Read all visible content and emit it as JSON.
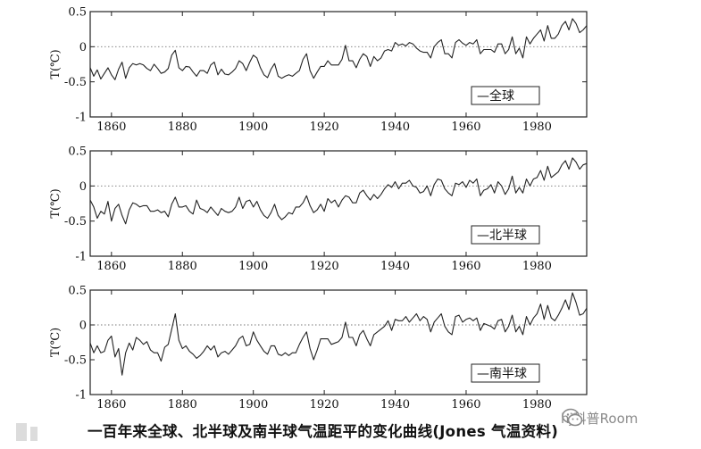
{
  "caption": "一百年来全球、北半球及南半球气温距平的变化曲线(Jones 气温资料)",
  "watermark": {
    "text": "hj科普Room",
    "icon": "wechat-icon"
  },
  "colors": {
    "line": "#222222",
    "zero_line": "#777777",
    "background": "#ffffff"
  },
  "chart_data": [
    {
      "type": "line",
      "ylabel": "T(℃)",
      "xticks": [
        1860,
        1880,
        1900,
        1920,
        1940,
        1960,
        1980
      ],
      "yticks": [
        0.5,
        0,
        -0.5,
        -1
      ],
      "ytick_labels": [
        "0.5",
        "0",
        "-0.5",
        "-1"
      ],
      "xlim": [
        1854,
        1994
      ],
      "ylim": [
        -1,
        0.5
      ],
      "zero_reference_line": "dotted",
      "legend": "—全球",
      "legend_position": "bottom-right",
      "series": [
        {
          "x": [
            1854,
            1855,
            1856,
            1857,
            1858,
            1859,
            1860,
            1861,
            1862,
            1863,
            1864,
            1865,
            1866,
            1867,
            1868,
            1869,
            1870,
            1871,
            1872,
            1873,
            1874,
            1875,
            1876,
            1877,
            1878,
            1879,
            1880,
            1881,
            1882,
            1883,
            1884,
            1885,
            1886,
            1887,
            1888,
            1889,
            1890,
            1891,
            1892,
            1893,
            1894,
            1895,
            1896,
            1897,
            1898,
            1899,
            1900,
            1901,
            1902,
            1903,
            1904,
            1905,
            1906,
            1907,
            1908,
            1909,
            1910,
            1911,
            1912,
            1913,
            1914,
            1915,
            1916,
            1917,
            1918,
            1919,
            1920,
            1921,
            1922,
            1923,
            1924,
            1925,
            1926,
            1927,
            1928,
            1929,
            1930,
            1931,
            1932,
            1933,
            1934,
            1935,
            1936,
            1937,
            1938,
            1939,
            1940,
            1941,
            1942,
            1943,
            1944,
            1945,
            1946,
            1947,
            1948,
            1949,
            1950,
            1951,
            1952,
            1953,
            1954,
            1955,
            1956,
            1957,
            1958,
            1959,
            1960,
            1961,
            1962,
            1963,
            1964,
            1965,
            1966,
            1967,
            1968,
            1969,
            1970,
            1971,
            1972,
            1973,
            1974,
            1975,
            1976,
            1977,
            1978,
            1979,
            1980,
            1981,
            1982,
            1983,
            1984,
            1985,
            1986,
            1987,
            1988,
            1989,
            1990,
            1991,
            1992,
            1993,
            1994
          ],
          "y": [
            -0.3,
            -0.42,
            -0.33,
            -0.46,
            -0.38,
            -0.3,
            -0.4,
            -0.47,
            -0.32,
            -0.22,
            -0.45,
            -0.3,
            -0.24,
            -0.26,
            -0.24,
            -0.26,
            -0.31,
            -0.34,
            -0.25,
            -0.31,
            -0.38,
            -0.36,
            -0.31,
            -0.12,
            -0.05,
            -0.3,
            -0.34,
            -0.28,
            -0.29,
            -0.36,
            -0.42,
            -0.34,
            -0.34,
            -0.38,
            -0.26,
            -0.22,
            -0.4,
            -0.32,
            -0.39,
            -0.4,
            -0.36,
            -0.31,
            -0.2,
            -0.24,
            -0.34,
            -0.22,
            -0.12,
            -0.16,
            -0.3,
            -0.4,
            -0.44,
            -0.32,
            -0.24,
            -0.42,
            -0.45,
            -0.42,
            -0.4,
            -0.42,
            -0.38,
            -0.34,
            -0.18,
            -0.1,
            -0.34,
            -0.45,
            -0.36,
            -0.28,
            -0.28,
            -0.2,
            -0.26,
            -0.26,
            -0.26,
            -0.18,
            0.02,
            -0.2,
            -0.2,
            -0.3,
            -0.18,
            -0.1,
            -0.14,
            -0.28,
            -0.14,
            -0.2,
            -0.16,
            -0.06,
            -0.04,
            -0.06,
            0.06,
            0.02,
            0.04,
            0.01,
            0.06,
            0.04,
            -0.02,
            -0.06,
            -0.08,
            -0.08,
            -0.16,
            0.0,
            0.06,
            0.1,
            -0.1,
            -0.1,
            -0.16,
            0.06,
            0.1,
            0.05,
            0.02,
            0.06,
            0.04,
            0.1,
            -0.1,
            -0.04,
            -0.04,
            -0.04,
            -0.08,
            0.04,
            0.04,
            -0.1,
            -0.04,
            0.14,
            -0.1,
            -0.02,
            -0.16,
            0.14,
            0.04,
            0.12,
            0.18,
            0.24,
            0.08,
            0.3,
            0.12,
            0.12,
            0.18,
            0.3,
            0.36,
            0.24,
            0.4,
            0.33,
            0.2,
            0.24,
            0.3
          ]
        }
      ]
    },
    {
      "type": "line",
      "ylabel": "T(℃)",
      "xticks": [
        1860,
        1880,
        1900,
        1920,
        1940,
        1960,
        1980
      ],
      "yticks": [
        0.5,
        0,
        -0.5,
        -1
      ],
      "ytick_labels": [
        "0.5",
        "0",
        "-0.5",
        "-1"
      ],
      "xlim": [
        1854,
        1994
      ],
      "ylim": [
        -1,
        0.5
      ],
      "zero_reference_line": "dotted",
      "legend": "—北半球",
      "legend_position": "bottom-right",
      "series": [
        {
          "x": [
            1854,
            1855,
            1856,
            1857,
            1858,
            1859,
            1860,
            1861,
            1862,
            1863,
            1864,
            1865,
            1866,
            1867,
            1868,
            1869,
            1870,
            1871,
            1872,
            1873,
            1874,
            1875,
            1876,
            1877,
            1878,
            1879,
            1880,
            1881,
            1882,
            1883,
            1884,
            1885,
            1886,
            1887,
            1888,
            1889,
            1890,
            1891,
            1892,
            1893,
            1894,
            1895,
            1896,
            1897,
            1898,
            1899,
            1900,
            1901,
            1902,
            1903,
            1904,
            1905,
            1906,
            1907,
            1908,
            1909,
            1910,
            1911,
            1912,
            1913,
            1914,
            1915,
            1916,
            1917,
            1918,
            1919,
            1920,
            1921,
            1922,
            1923,
            1924,
            1925,
            1926,
            1927,
            1928,
            1929,
            1930,
            1931,
            1932,
            1933,
            1934,
            1935,
            1936,
            1937,
            1938,
            1939,
            1940,
            1941,
            1942,
            1943,
            1944,
            1945,
            1946,
            1947,
            1948,
            1949,
            1950,
            1951,
            1952,
            1953,
            1954,
            1955,
            1956,
            1957,
            1958,
            1959,
            1960,
            1961,
            1962,
            1963,
            1964,
            1965,
            1966,
            1967,
            1968,
            1969,
            1970,
            1971,
            1972,
            1973,
            1974,
            1975,
            1976,
            1977,
            1978,
            1979,
            1980,
            1981,
            1982,
            1983,
            1984,
            1985,
            1986,
            1987,
            1988,
            1989,
            1990,
            1991,
            1992,
            1993,
            1994
          ],
          "y": [
            -0.2,
            -0.3,
            -0.46,
            -0.36,
            -0.4,
            -0.22,
            -0.5,
            -0.32,
            -0.26,
            -0.42,
            -0.54,
            -0.34,
            -0.24,
            -0.26,
            -0.3,
            -0.28,
            -0.28,
            -0.36,
            -0.36,
            -0.34,
            -0.38,
            -0.36,
            -0.44,
            -0.26,
            -0.16,
            -0.3,
            -0.3,
            -0.28,
            -0.36,
            -0.4,
            -0.2,
            -0.32,
            -0.34,
            -0.38,
            -0.3,
            -0.36,
            -0.42,
            -0.32,
            -0.36,
            -0.38,
            -0.36,
            -0.3,
            -0.16,
            -0.32,
            -0.22,
            -0.2,
            -0.3,
            -0.22,
            -0.34,
            -0.42,
            -0.46,
            -0.38,
            -0.26,
            -0.42,
            -0.48,
            -0.44,
            -0.38,
            -0.4,
            -0.3,
            -0.3,
            -0.24,
            -0.14,
            -0.28,
            -0.38,
            -0.34,
            -0.26,
            -0.36,
            -0.18,
            -0.24,
            -0.2,
            -0.3,
            -0.2,
            -0.14,
            -0.16,
            -0.24,
            -0.24,
            -0.1,
            -0.06,
            -0.14,
            -0.2,
            -0.12,
            -0.18,
            -0.12,
            -0.04,
            0.02,
            -0.02,
            0.06,
            -0.04,
            0.04,
            0.04,
            0.08,
            0.0,
            -0.02,
            -0.1,
            -0.08,
            0.0,
            -0.14,
            0.02,
            0.1,
            0.08,
            -0.04,
            -0.1,
            -0.14,
            0.04,
            0.02,
            0.06,
            -0.02,
            0.08,
            0.04,
            0.1,
            -0.14,
            -0.06,
            -0.04,
            0.02,
            -0.1,
            0.06,
            0.0,
            -0.12,
            -0.04,
            0.14,
            -0.1,
            -0.02,
            -0.1,
            0.1,
            0.0,
            0.1,
            0.12,
            0.22,
            0.08,
            0.28,
            0.12,
            0.16,
            0.2,
            0.3,
            0.36,
            0.24,
            0.4,
            0.34,
            0.24,
            0.3,
            0.32
          ]
        }
      ]
    },
    {
      "type": "line",
      "ylabel": "T(℃)",
      "xticks": [
        1860,
        1880,
        1900,
        1920,
        1940,
        1960,
        1980
      ],
      "yticks": [
        0.5,
        0,
        -0.5,
        -1
      ],
      "ytick_labels": [
        "0.5",
        "0",
        "-0.5",
        "-1"
      ],
      "xlim": [
        1854,
        1994
      ],
      "ylim": [
        -1,
        0.5
      ],
      "zero_reference_line": "dotted",
      "legend": "—南半球",
      "legend_position": "bottom-right",
      "series": [
        {
          "x": [
            1854,
            1855,
            1856,
            1857,
            1858,
            1859,
            1860,
            1861,
            1862,
            1863,
            1864,
            1865,
            1866,
            1867,
            1868,
            1869,
            1870,
            1871,
            1872,
            1873,
            1874,
            1875,
            1876,
            1877,
            1878,
            1879,
            1880,
            1881,
            1882,
            1883,
            1884,
            1885,
            1886,
            1887,
            1888,
            1889,
            1890,
            1891,
            1892,
            1893,
            1894,
            1895,
            1896,
            1897,
            1898,
            1899,
            1900,
            1901,
            1902,
            1903,
            1904,
            1905,
            1906,
            1907,
            1908,
            1909,
            1910,
            1911,
            1912,
            1913,
            1914,
            1915,
            1916,
            1917,
            1918,
            1919,
            1920,
            1921,
            1922,
            1923,
            1924,
            1925,
            1926,
            1927,
            1928,
            1929,
            1930,
            1931,
            1932,
            1933,
            1934,
            1935,
            1936,
            1937,
            1938,
            1939,
            1940,
            1941,
            1942,
            1943,
            1944,
            1945,
            1946,
            1947,
            1948,
            1949,
            1950,
            1951,
            1952,
            1953,
            1954,
            1955,
            1956,
            1957,
            1958,
            1959,
            1960,
            1961,
            1962,
            1963,
            1964,
            1965,
            1966,
            1967,
            1968,
            1969,
            1970,
            1971,
            1972,
            1973,
            1974,
            1975,
            1976,
            1977,
            1978,
            1979,
            1980,
            1981,
            1982,
            1983,
            1984,
            1985,
            1986,
            1987,
            1988,
            1989,
            1990,
            1991,
            1992,
            1993,
            1994
          ],
          "y": [
            -0.26,
            -0.4,
            -0.3,
            -0.4,
            -0.38,
            -0.22,
            -0.16,
            -0.46,
            -0.34,
            -0.72,
            -0.4,
            -0.26,
            -0.36,
            -0.18,
            -0.22,
            -0.28,
            -0.24,
            -0.36,
            -0.4,
            -0.4,
            -0.52,
            -0.32,
            -0.28,
            -0.06,
            0.16,
            -0.22,
            -0.34,
            -0.3,
            -0.38,
            -0.42,
            -0.48,
            -0.44,
            -0.38,
            -0.3,
            -0.36,
            -0.3,
            -0.46,
            -0.4,
            -0.38,
            -0.42,
            -0.36,
            -0.3,
            -0.2,
            -0.16,
            -0.3,
            -0.28,
            -0.1,
            -0.22,
            -0.3,
            -0.38,
            -0.42,
            -0.3,
            -0.3,
            -0.42,
            -0.44,
            -0.4,
            -0.44,
            -0.4,
            -0.4,
            -0.28,
            -0.18,
            -0.1,
            -0.34,
            -0.5,
            -0.36,
            -0.2,
            -0.2,
            -0.2,
            -0.28,
            -0.26,
            -0.24,
            -0.18,
            0.04,
            -0.18,
            -0.18,
            -0.3,
            -0.14,
            -0.08,
            -0.2,
            -0.3,
            -0.14,
            -0.1,
            -0.06,
            -0.02,
            0.06,
            -0.08,
            0.08,
            0.06,
            0.06,
            0.12,
            0.04,
            0.1,
            0.16,
            0.06,
            0.12,
            0.08,
            -0.1,
            0.04,
            0.1,
            0.16,
            -0.02,
            -0.1,
            -0.14,
            0.12,
            0.14,
            0.04,
            0.08,
            0.1,
            0.06,
            0.1,
            -0.08,
            0.02,
            0.0,
            -0.02,
            -0.06,
            0.06,
            0.08,
            -0.1,
            -0.02,
            0.14,
            -0.1,
            -0.02,
            -0.14,
            0.12,
            0.0,
            0.1,
            0.16,
            0.3,
            0.08,
            0.28,
            0.1,
            0.06,
            0.14,
            0.24,
            0.36,
            0.22,
            0.46,
            0.32,
            0.14,
            0.16,
            0.24
          ]
        }
      ]
    }
  ]
}
